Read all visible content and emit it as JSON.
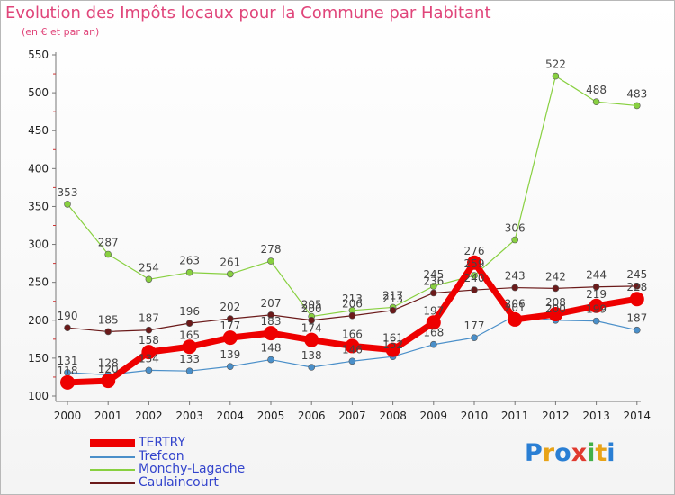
{
  "title": "Evolution des Impôts locaux pour la Commune par Habitant",
  "subtitle": "(en € et par an)",
  "logo": {
    "text": "Proxiti",
    "letters": [
      {
        "ch": "P",
        "color": "#2a7fd4"
      },
      {
        "ch": "r",
        "color": "#e8a317"
      },
      {
        "ch": "o",
        "color": "#2a7fd4"
      },
      {
        "ch": "x",
        "color": "#e03a2f"
      },
      {
        "ch": "i",
        "color": "#43b047"
      },
      {
        "ch": "t",
        "color": "#e8a317"
      },
      {
        "ch": "i",
        "color": "#2a7fd4"
      }
    ]
  },
  "chart_data": {
    "type": "line",
    "title": "Evolution des Impôts locaux pour la Commune par Habitant",
    "subtitle": "(en € et par an)",
    "x": [
      "2000",
      "2001",
      "2002",
      "2003",
      "2004",
      "2005",
      "2006",
      "2007",
      "2008",
      "2009",
      "2010",
      "2011",
      "2012",
      "2013",
      "2014"
    ],
    "ylim": [
      100,
      550
    ],
    "yticks": [
      100,
      150,
      200,
      250,
      300,
      350,
      400,
      450,
      500,
      550
    ],
    "grid": false,
    "legend_position": "bottom-left",
    "series": [
      {
        "name": "TERTRY",
        "color": "#ee0000",
        "width": 7,
        "marker": 8,
        "values": [
          118,
          120,
          158,
          165,
          177,
          183,
          174,
          166,
          161,
          197,
          276,
          201,
          208,
          219,
          228
        ],
        "labels": [
          "118",
          "120",
          "158",
          "165",
          "177",
          "183",
          "174",
          "166",
          "161",
          "197",
          "276",
          "201",
          "208",
          "219",
          "228"
        ]
      },
      {
        "name": "Trefcon",
        "color": "#4a8fc9",
        "width": 1.2,
        "marker": 3.5,
        "values": [
          131,
          128,
          134,
          133,
          139,
          148,
          138,
          146,
          152,
          168,
          177,
          206,
          200,
          199,
          187
        ],
        "labels": [
          "131",
          "128",
          "134",
          "133",
          "139",
          "148",
          "138",
          "146",
          "152",
          "168",
          "177",
          "206",
          "200",
          "199",
          "187"
        ]
      },
      {
        "name": "Monchy-Lagache",
        "color": "#88d040",
        "width": 1.2,
        "marker": 3.5,
        "values": [
          353,
          287,
          254,
          263,
          261,
          278,
          205,
          213,
          217,
          245,
          259,
          306,
          522,
          488,
          483
        ],
        "labels": [
          "353",
          "287",
          "254",
          "263",
          "261",
          "278",
          "205",
          "213",
          "217",
          "245",
          "259",
          "306",
          "522",
          "488",
          "483"
        ]
      },
      {
        "name": "Caulaincourt",
        "color": "#6b1a1a",
        "width": 1.2,
        "marker": 3.5,
        "values": [
          190,
          185,
          187,
          196,
          202,
          207,
          200,
          206,
          213,
          236,
          240,
          243,
          242,
          244,
          245
        ],
        "labels": [
          "190",
          "185",
          "187",
          "196",
          "202",
          "207",
          "200",
          "206",
          "213",
          "236",
          "240",
          "243",
          "242",
          "244",
          "245"
        ]
      }
    ]
  }
}
